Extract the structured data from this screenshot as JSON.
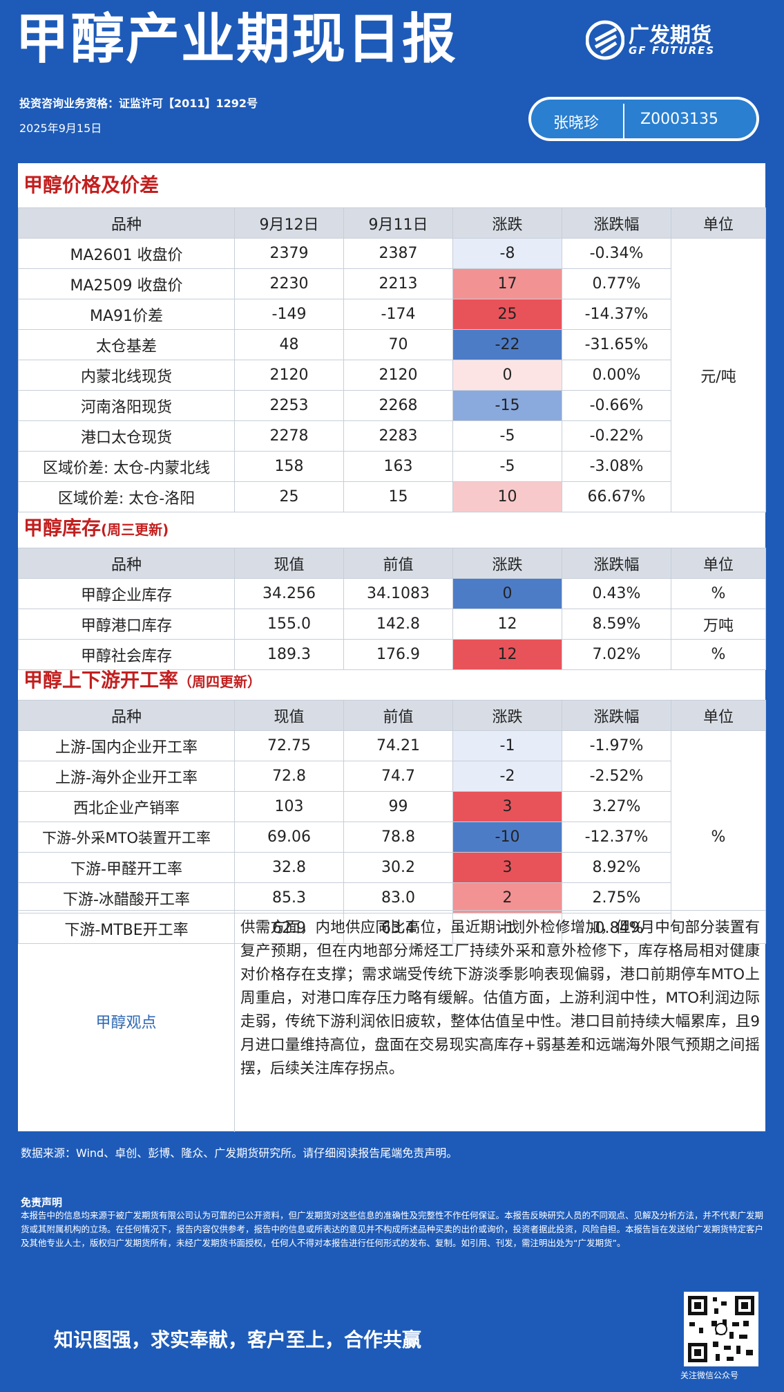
{
  "header": {
    "title": "甲醇产业期现日报",
    "brand_cn": "广发期货",
    "brand_en": "GF FUTURES",
    "qualification": "投资咨询业务资格：证监许可【2011】1292号",
    "date": "2025年9月15日",
    "analyst_name": "张晓珍",
    "analyst_code": "Z0003135"
  },
  "colors": {
    "red_strong": "#e8535a",
    "red_mid": "#f29293",
    "red_light": "#f8c9cb",
    "red_pale": "#fde4e4",
    "blue_strong": "#4d7cc7",
    "blue_mid": "#8aa9dd",
    "blue_light": "#c8d5ef",
    "blue_pale": "#e6ecf8",
    "title_red": "#c21f1f",
    "bg_blue": "#1e5bb8"
  },
  "price": {
    "title": "甲醇价格及价差",
    "headers": [
      "品种",
      "9月12日",
      "9月11日",
      "涨跌",
      "涨跌幅",
      "单位"
    ],
    "unit": "元/吨",
    "rows": [
      {
        "name": "MA2601 收盘价",
        "a": "2379",
        "b": "2387",
        "chg": "-8",
        "pct": "-0.34%",
        "heat": "blue_pale"
      },
      {
        "name": "MA2509 收盘价",
        "a": "2230",
        "b": "2213",
        "chg": "17",
        "pct": "0.77%",
        "heat": "red_mid"
      },
      {
        "name": "MA91价差",
        "a": "-149",
        "b": "-174",
        "chg": "25",
        "pct": "-14.37%",
        "heat": "red_strong"
      },
      {
        "name": "太仓基差",
        "a": "48",
        "b": "70",
        "chg": "-22",
        "pct": "-31.65%",
        "heat": "blue_strong"
      },
      {
        "name": "内蒙北线现货",
        "a": "2120",
        "b": "2120",
        "chg": "0",
        "pct": "0.00%",
        "heat": "red_pale"
      },
      {
        "name": "河南洛阳现货",
        "a": "2253",
        "b": "2268",
        "chg": "-15",
        "pct": "-0.66%",
        "heat": "blue_mid"
      },
      {
        "name": "港口太仓现货",
        "a": "2278",
        "b": "2283",
        "chg": "-5",
        "pct": "-0.22%",
        "heat": "none"
      },
      {
        "name": "区域价差: 太仓-内蒙北线",
        "a": "158",
        "b": "163",
        "chg": "-5",
        "pct": "-3.08%",
        "heat": "none"
      },
      {
        "name": "区域价差: 太仓-洛阳",
        "a": "25",
        "b": "15",
        "chg": "10",
        "pct": "66.67%",
        "heat": "red_light"
      }
    ]
  },
  "inventory": {
    "title": "甲醇库存",
    "note": "(周三更新)",
    "headers": [
      "品种",
      "现值",
      "前值",
      "涨跌",
      "涨跌幅",
      "单位"
    ],
    "rows": [
      {
        "name": "甲醇企业库存",
        "a": "34.256",
        "b": "34.1083",
        "chg": "0",
        "pct": "0.43%",
        "unit": "%",
        "heat": "blue_strong"
      },
      {
        "name": "甲醇港口库存",
        "a": "155.0",
        "b": "142.8",
        "chg": "12",
        "pct": "8.59%",
        "unit": "万吨",
        "heat": "none"
      },
      {
        "name": "甲醇社会库存",
        "a": "189.3",
        "b": "176.9",
        "chg": "12",
        "pct": "7.02%",
        "unit": "%",
        "heat": "red_strong"
      }
    ]
  },
  "operating": {
    "title": "甲醇上下游开工率",
    "note": "（周四更新）",
    "headers": [
      "品种",
      "现值",
      "前值",
      "涨跌",
      "涨跌幅",
      "单位"
    ],
    "unit": "%",
    "rows": [
      {
        "name": "上游-国内企业开工率",
        "a": "72.75",
        "b": "74.21",
        "chg": "-1",
        "pct": "-1.97%",
        "heat": "blue_pale"
      },
      {
        "name": "上游-海外企业开工率",
        "a": "72.8",
        "b": "74.7",
        "chg": "-2",
        "pct": "-2.52%",
        "heat": "blue_pale"
      },
      {
        "name": "西北企业产销率",
        "a": "103",
        "b": "99",
        "chg": "3",
        "pct": "3.27%",
        "heat": "red_strong"
      },
      {
        "name": "下游-外采MTO装置开工率",
        "a": "69.06",
        "b": "78.8",
        "chg": "-10",
        "pct": "-12.37%",
        "heat": "blue_strong"
      },
      {
        "name": "下游-甲醛开工率",
        "a": "32.8",
        "b": "30.2",
        "chg": "3",
        "pct": "8.92%",
        "heat": "red_strong"
      },
      {
        "name": "下游-冰醋酸开工率",
        "a": "85.3",
        "b": "83.0",
        "chg": "2",
        "pct": "2.75%",
        "heat": "red_mid"
      },
      {
        "name": "下游-MTBE开工率",
        "a": "62.9",
        "b": "63.4",
        "chg": "-1",
        "pct": "-0.84%",
        "heat": "none"
      }
    ]
  },
  "view": {
    "label": "甲醇观点",
    "text": "供需方面，内地供应同比高位，虽近期计划外检修增加，但9月中旬部分装置有复产预期，但在内地部分烯烃工厂持续外采和意外检修下，库存格局相对健康对价格存在支撑；需求端受传统下游淡季影响表现偏弱，港口前期停车MTO上周重启，对港口库存压力略有缓解。估值方面，上游利润中性，MTO利润边际走弱，传统下游利润依旧疲软，整体估值呈中性。港口目前持续大幅累库，且9月进口量维持高位，盘面在交易现实高库存+弱基差和远端海外限气预期之间摇摆，后续关注库存拐点。"
  },
  "footer": {
    "source": "数据来源：Wind、卓创、彭博、隆众、广发期货研究所。请仔细阅读报告尾端免责声明。",
    "disclaimer_title": "免责声明",
    "disclaimer": "本报告中的信息均来源于被广发期货有限公司认为可靠的已公开资料，但广发期货对这些信息的准确性及完整性不作任何保证。本报告反映研究人员的不同观点、见解及分析方法，并不代表广发期货或其附属机构的立场。在任何情况下，报告内容仅供参考，报告中的信息或所表达的意见并不构成所述品种买卖的出价或询价，投资者据此投资，风险自担。本报告旨在发送给广发期货特定客户及其他专业人士，版权归广发期货所有，未经广发期货书面授权，任何人不得对本报告进行任何形式的发布、复制。如引用、刊发，需注明出处为“广发期货”。",
    "motto": "知识图强，求实奉献，客户至上，合作共赢",
    "qr_caption": "关注微信公众号"
  }
}
